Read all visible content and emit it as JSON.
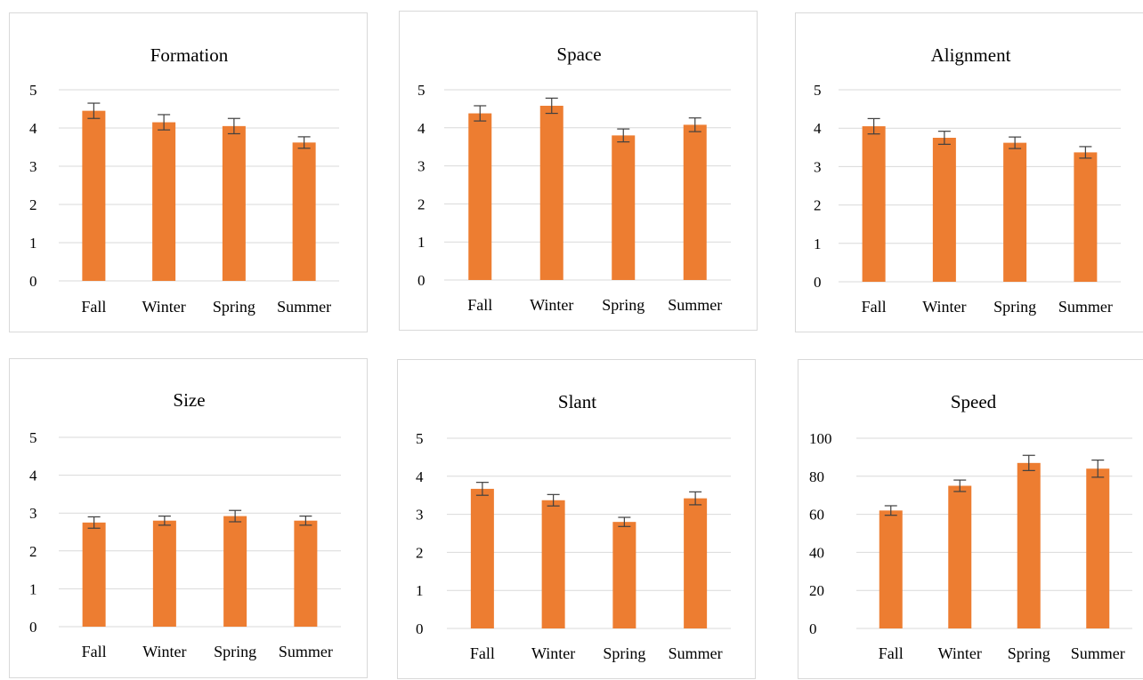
{
  "colors": {
    "bar": "#ED7D31",
    "grid": "#d9d9d9",
    "errorbar": "#404040",
    "text": "#000000"
  },
  "chart_data": [
    {
      "type": "bar",
      "title": "Formation",
      "categories": [
        "Fall",
        "Winter",
        "Spring",
        "Summer"
      ],
      "values": [
        4.45,
        4.15,
        4.05,
        3.62
      ],
      "errors": [
        0.2,
        0.2,
        0.2,
        0.15
      ],
      "ylim": [
        0,
        5
      ],
      "yticks": [
        0,
        1,
        2,
        3,
        4,
        5
      ],
      "grid": true,
      "xlabel": "",
      "ylabel": ""
    },
    {
      "type": "bar",
      "title": "Space",
      "categories": [
        "Fall",
        "Winter",
        "Spring",
        "Summer"
      ],
      "values": [
        4.38,
        4.58,
        3.8,
        4.08
      ],
      "errors": [
        0.2,
        0.2,
        0.17,
        0.18
      ],
      "ylim": [
        0,
        5
      ],
      "yticks": [
        0,
        1,
        2,
        3,
        4,
        5
      ],
      "grid": true,
      "xlabel": "",
      "ylabel": ""
    },
    {
      "type": "bar",
      "title": "Alignment",
      "categories": [
        "Fall",
        "Winter",
        "Spring",
        "Summer"
      ],
      "values": [
        4.05,
        3.75,
        3.62,
        3.37
      ],
      "errors": [
        0.2,
        0.17,
        0.15,
        0.15
      ],
      "ylim": [
        0,
        5
      ],
      "yticks": [
        0,
        1,
        2,
        3,
        4,
        5
      ],
      "grid": true,
      "xlabel": "",
      "ylabel": ""
    },
    {
      "type": "bar",
      "title": "Size",
      "categories": [
        "Fall",
        "Winter",
        "Spring",
        "Summer"
      ],
      "values": [
        2.75,
        2.8,
        2.92,
        2.8
      ],
      "errors": [
        0.15,
        0.12,
        0.15,
        0.12
      ],
      "ylim": [
        0,
        5
      ],
      "yticks": [
        0,
        1,
        2,
        3,
        4,
        5
      ],
      "grid": true,
      "xlabel": "",
      "ylabel": ""
    },
    {
      "type": "bar",
      "title": "Slant",
      "categories": [
        "Fall",
        "Winter",
        "Spring",
        "Summer"
      ],
      "values": [
        3.67,
        3.37,
        2.8,
        3.42
      ],
      "errors": [
        0.17,
        0.15,
        0.12,
        0.17
      ],
      "ylim": [
        0,
        5
      ],
      "yticks": [
        0,
        1,
        2,
        3,
        4,
        5
      ],
      "grid": true,
      "xlabel": "",
      "ylabel": ""
    },
    {
      "type": "bar",
      "title": "Speed",
      "categories": [
        "Fall",
        "Winter",
        "Spring",
        "Summer"
      ],
      "values": [
        62,
        75,
        87,
        84
      ],
      "errors": [
        2.5,
        3,
        4,
        4.5
      ],
      "ylim": [
        0,
        100
      ],
      "yticks": [
        0,
        20,
        40,
        60,
        80,
        100
      ],
      "grid": true,
      "xlabel": "",
      "ylabel": ""
    }
  ]
}
